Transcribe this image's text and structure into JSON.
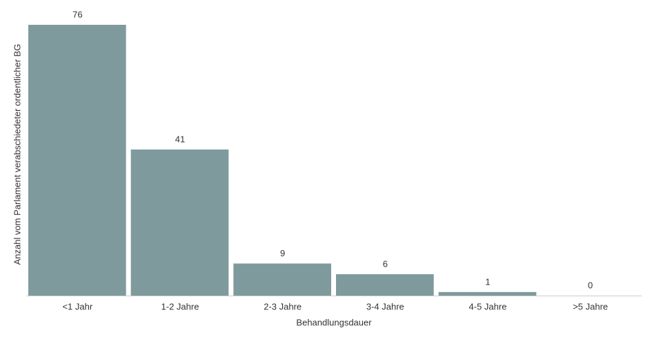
{
  "chart_data": {
    "type": "bar",
    "categories": [
      "<1 Jahr",
      "1-2 Jahre",
      "2-3 Jahre",
      "3-4 Jahre",
      "4-5 Jahre",
      ">5 Jahre"
    ],
    "values": [
      76,
      41,
      9,
      6,
      1,
      0
    ],
    "color": "#7f9a9c",
    "ylim": [
      0,
      76
    ],
    "x_label": "Behandlungsdauer",
    "y_label": "Anzahl vom Parlament verabschiedeter ordentlicher BG"
  }
}
